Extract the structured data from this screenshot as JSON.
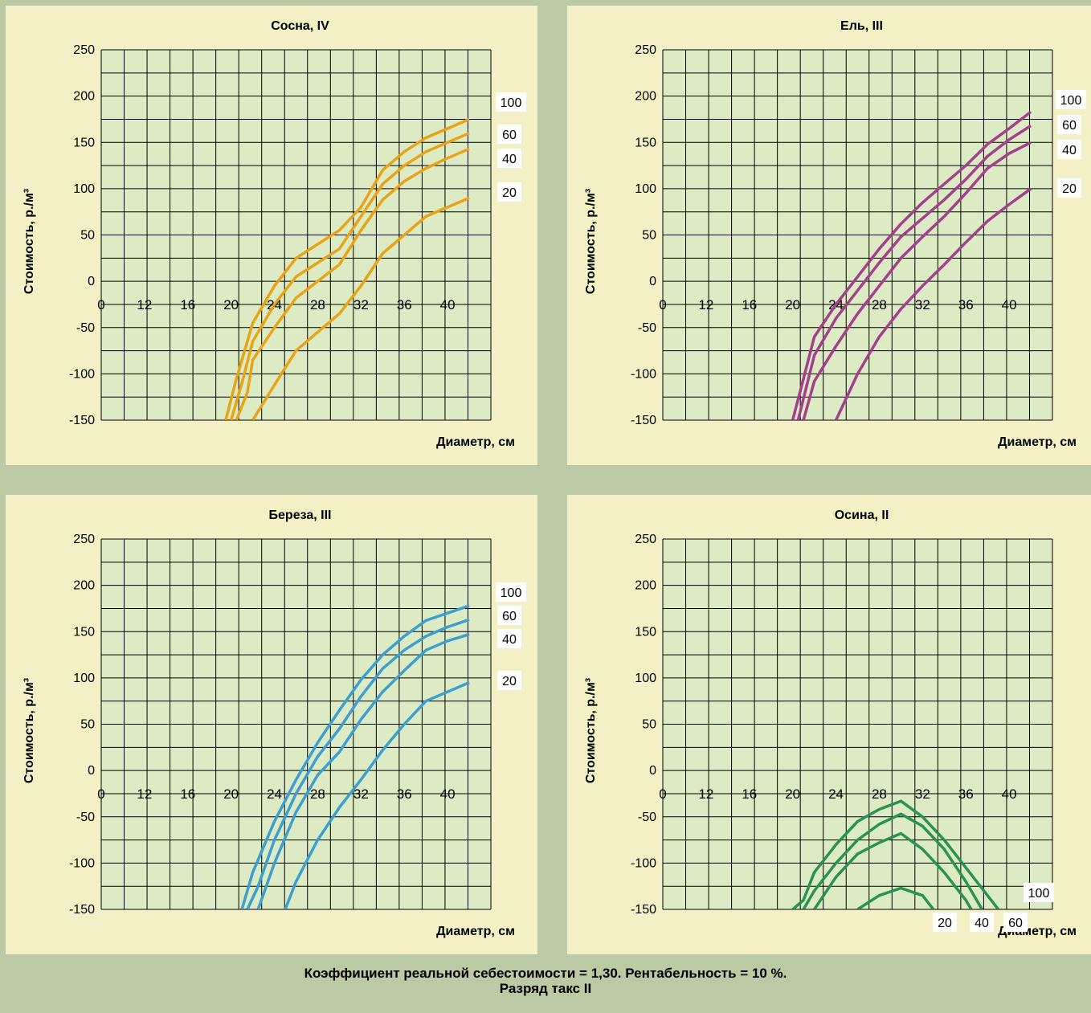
{
  "footer": {
    "line1": "Коэффициент реальной себестоимости = 1,30. Рентабельность = 10 %.",
    "line2": "Разряд такс II"
  },
  "chart_data": [
    {
      "type": "line",
      "title": "Сосна, IV",
      "xlabel": "Диаметр, см",
      "ylabel": "Стоимость, р./м³",
      "x_ticks": [
        "0",
        "12",
        "16",
        "20",
        "24",
        "28",
        "32",
        "36",
        "40"
      ],
      "y_ticks": [
        "250",
        "200",
        "150",
        "100",
        "50",
        "0",
        "-50",
        "-100",
        "-150"
      ],
      "ylim": [
        -150,
        250
      ],
      "xlim": [
        6,
        42
      ],
      "grid": true,
      "color": "#e8a317",
      "series": [
        {
          "name": "100",
          "x": [
            17.5,
            18.5,
            20,
            22,
            24,
            26,
            28,
            30,
            32,
            34,
            36,
            38,
            40
          ],
          "values": [
            -150,
            -105,
            -45,
            -5,
            25,
            40,
            55,
            80,
            120,
            140,
            155,
            165,
            175
          ]
        },
        {
          "name": "60",
          "x": [
            18,
            19,
            20,
            22,
            24,
            26,
            28,
            30,
            32,
            34,
            36,
            38,
            40
          ],
          "values": [
            -150,
            -110,
            -65,
            -25,
            5,
            20,
            35,
            70,
            105,
            125,
            140,
            150,
            160
          ]
        },
        {
          "name": "40",
          "x": [
            18.5,
            19.5,
            20,
            22,
            24,
            26,
            28,
            30,
            32,
            34,
            36,
            38,
            40
          ],
          "values": [
            -150,
            -120,
            -85,
            -50,
            -18,
            0,
            18,
            55,
            88,
            108,
            122,
            133,
            143
          ]
        },
        {
          "name": "20",
          "x": [
            20,
            22,
            24,
            26,
            28,
            30,
            32,
            34,
            36,
            38,
            40
          ],
          "values": [
            -150,
            -112,
            -75,
            -55,
            -35,
            -5,
            30,
            50,
            70,
            80,
            90
          ]
        }
      ]
    },
    {
      "type": "line",
      "title": "Ель, III",
      "xlabel": "Диаметр, см",
      "ylabel": "Стоимость, р./м³",
      "x_ticks": [
        "0",
        "12",
        "16",
        "20",
        "24",
        "28",
        "32",
        "36",
        "40"
      ],
      "y_ticks": [
        "250",
        "200",
        "150",
        "100",
        "50",
        "0",
        "-50",
        "-100",
        "-150"
      ],
      "ylim": [
        -150,
        250
      ],
      "xlim": [
        6,
        42
      ],
      "grid": true,
      "color": "#a43f8c",
      "series": [
        {
          "name": "100",
          "x": [
            18,
            20,
            22,
            24,
            26,
            28,
            30,
            32,
            34,
            36,
            38,
            40
          ],
          "values": [
            -150,
            -60,
            -25,
            5,
            35,
            62,
            85,
            105,
            125,
            148,
            165,
            183
          ]
        },
        {
          "name": "60",
          "x": [
            18.5,
            20,
            22,
            24,
            26,
            28,
            30,
            32,
            34,
            36,
            38,
            40
          ],
          "values": [
            -150,
            -80,
            -40,
            -10,
            20,
            48,
            68,
            88,
            110,
            135,
            153,
            168
          ]
        },
        {
          "name": "40",
          "x": [
            19,
            20,
            22,
            24,
            26,
            28,
            30,
            32,
            34,
            36,
            38,
            40
          ],
          "values": [
            -150,
            -108,
            -70,
            -35,
            -5,
            25,
            48,
            70,
            95,
            122,
            138,
            150
          ]
        },
        {
          "name": "20",
          "x": [
            22,
            24,
            26,
            28,
            30,
            32,
            34,
            36,
            38,
            40
          ],
          "values": [
            -150,
            -100,
            -60,
            -30,
            -5,
            18,
            42,
            65,
            83,
            100
          ]
        }
      ]
    },
    {
      "type": "line",
      "title": "Береза, III",
      "xlabel": "Диаметр, см",
      "ylabel": "Стоимость, р./м³",
      "x_ticks": [
        "0",
        "12",
        "16",
        "20",
        "24",
        "28",
        "32",
        "36",
        "40"
      ],
      "y_ticks": [
        "250",
        "200",
        "150",
        "100",
        "50",
        "0",
        "-50",
        "-100",
        "-150"
      ],
      "ylim": [
        -150,
        250
      ],
      "xlim": [
        6,
        42
      ],
      "grid": true,
      "color": "#3d9fcf",
      "series": [
        {
          "name": "100",
          "x": [
            19,
            20,
            22,
            24,
            26,
            28,
            30,
            32,
            34,
            36,
            38,
            40
          ],
          "values": [
            -150,
            -110,
            -55,
            -10,
            30,
            65,
            98,
            125,
            145,
            162,
            170,
            178
          ]
        },
        {
          "name": "60",
          "x": [
            19.5,
            20.5,
            22,
            24,
            26,
            28,
            30,
            32,
            34,
            36,
            38,
            40
          ],
          "values": [
            -150,
            -125,
            -75,
            -25,
            15,
            45,
            80,
            110,
            130,
            145,
            155,
            163
          ]
        },
        {
          "name": "40",
          "x": [
            20.5,
            22,
            24,
            26,
            28,
            30,
            32,
            34,
            36,
            38,
            40
          ],
          "values": [
            -150,
            -100,
            -45,
            -5,
            20,
            55,
            85,
            108,
            130,
            140,
            147
          ]
        },
        {
          "name": "20",
          "x": [
            23,
            24,
            26,
            28,
            30,
            32,
            34,
            36,
            38,
            40
          ],
          "values": [
            -150,
            -120,
            -75,
            -40,
            -10,
            22,
            50,
            75,
            85,
            95
          ]
        }
      ]
    },
    {
      "type": "line",
      "title": "Осина, II",
      "xlabel": "Диаметр, см",
      "ylabel": "Стоимость, р./м³",
      "x_ticks": [
        "0",
        "12",
        "16",
        "20",
        "24",
        "28",
        "32",
        "36",
        "40"
      ],
      "y_ticks": [
        "250",
        "200",
        "150",
        "100",
        "50",
        "0",
        "-50",
        "-100",
        "-150"
      ],
      "ylim": [
        -150,
        250
      ],
      "xlim": [
        6,
        42
      ],
      "grid": true,
      "color": "#2a9250",
      "series": [
        {
          "name": "100",
          "x": [
            18,
            19,
            20,
            22,
            24,
            26,
            28,
            30,
            32,
            34,
            36,
            37
          ],
          "values": [
            -150,
            -140,
            -110,
            -80,
            -55,
            -42,
            -33,
            -50,
            -75,
            -105,
            -135,
            -150
          ]
        },
        {
          "name": "60",
          "x": [
            19,
            20,
            22,
            24,
            26,
            28,
            30,
            32,
            34,
            35.5
          ],
          "values": [
            -150,
            -130,
            -100,
            -75,
            -58,
            -47,
            -60,
            -85,
            -120,
            -150
          ]
        },
        {
          "name": "40",
          "x": [
            20,
            22,
            24,
            26,
            28,
            30,
            32,
            34,
            34.5
          ],
          "values": [
            -150,
            -115,
            -90,
            -78,
            -68,
            -85,
            -110,
            -140,
            -150
          ]
        },
        {
          "name": "20",
          "x": [
            24,
            26,
            28,
            30,
            31
          ],
          "values": [
            -150,
            -135,
            -127,
            -135,
            -150
          ]
        }
      ]
    }
  ]
}
